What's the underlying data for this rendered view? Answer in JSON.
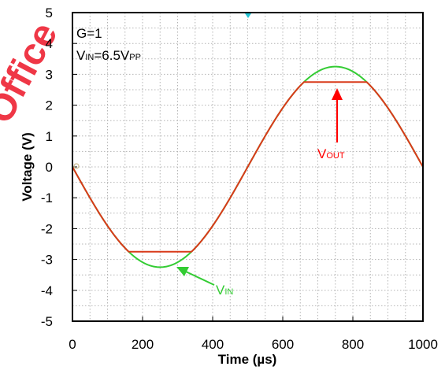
{
  "chart_data": {
    "type": "line",
    "xlabel": "Time (µs)",
    "ylabel": "Voltage (V)",
    "xlim": [
      0,
      1000
    ],
    "ylim": [
      -5,
      5
    ],
    "xticks": [
      0,
      200,
      400,
      600,
      800,
      1000
    ],
    "yticks": [
      5,
      4,
      3,
      2,
      1,
      0,
      -1,
      -2,
      -3,
      -4,
      -5
    ],
    "grid": true,
    "annotations": {
      "gain": "G=1",
      "vin_text": {
        "main": "V",
        "sub": "IN",
        "after": "=6.5V",
        "sub2": "PP"
      },
      "vout_label": {
        "main": "V",
        "sub": "OUT"
      },
      "vin_label": {
        "main": "V",
        "sub": "IN"
      }
    },
    "series": [
      {
        "key": "vin",
        "color": "#33cc33",
        "amplitude": 3.25,
        "period": 1000,
        "x": [
          0,
          1000
        ]
      },
      {
        "key": "vout",
        "color": "#d93a1a",
        "clip_high": 2.75,
        "clip_low": -2.75,
        "x": [
          0,
          1000
        ]
      }
    ],
    "arrow_colors": {
      "vout": "#ff0000",
      "vin": "#33cc33"
    }
  }
}
